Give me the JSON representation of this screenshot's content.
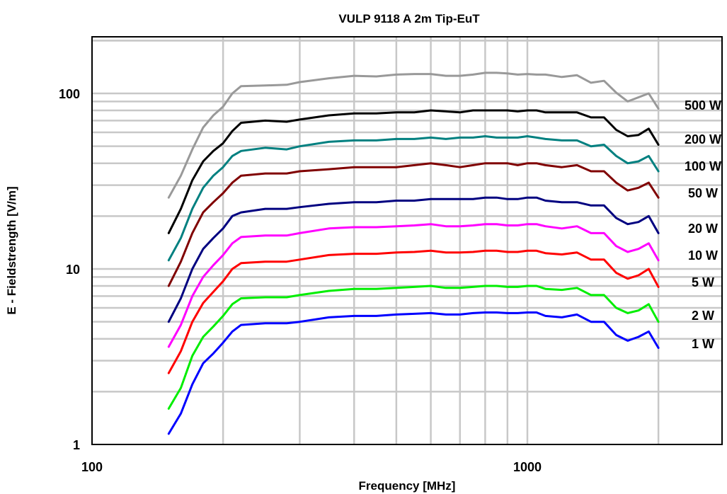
{
  "chart_data": {
    "type": "line",
    "title": "VULP 9118 A 2m Tip-EuT",
    "xlabel": "Frequency [MHz]",
    "ylabel": "E - Fieldstrength [V/m]",
    "x_scale": "log",
    "y_scale": "log",
    "xlim": [
      100,
      2000
    ],
    "ylim": [
      1,
      200
    ],
    "x_ticks": [
      {
        "value": 100,
        "label": "100"
      },
      {
        "value": 1000,
        "label": "1000"
      }
    ],
    "y_ticks": [
      {
        "value": 1,
        "label": "1"
      },
      {
        "value": 10,
        "label": "10"
      },
      {
        "value": 100,
        "label": "100"
      }
    ],
    "grid": true,
    "x": [
      150,
      160,
      170,
      180,
      190,
      200,
      210,
      220,
      250,
      280,
      300,
      350,
      400,
      450,
      500,
      550,
      600,
      650,
      700,
      750,
      800,
      850,
      900,
      950,
      1000,
      1050,
      1100,
      1200,
      1300,
      1400,
      1500,
      1600,
      1700,
      1800,
      1900,
      2000
    ],
    "series": [
      {
        "name": "500 W",
        "label": "500 W",
        "color": "#999999",
        "values": [
          25.5,
          34,
          48,
          64,
          75,
          84,
          100,
          110,
          111,
          112,
          116,
          122,
          126,
          125,
          128,
          129,
          129,
          126,
          126,
          128,
          131,
          131,
          130,
          128,
          129,
          128,
          128,
          124,
          127,
          115,
          118,
          101,
          90,
          95,
          100,
          82
        ]
      },
      {
        "name": "200 W",
        "label": "200 W",
        "color": "#000000",
        "values": [
          16,
          22,
          32,
          41,
          47,
          52,
          61,
          68,
          70,
          69,
          71,
          75,
          77,
          77,
          78,
          78,
          80,
          79,
          78,
          80,
          80,
          80,
          80,
          79,
          80,
          80,
          78,
          78,
          78,
          73,
          73,
          62,
          57,
          58,
          63,
          51
        ]
      },
      {
        "name": "100 W",
        "label": "100 W",
        "color": "#008080",
        "values": [
          11.2,
          15,
          22,
          29,
          34,
          38,
          44,
          47,
          49,
          48,
          50,
          53,
          54,
          54,
          55,
          55,
          56,
          55,
          56,
          56,
          57,
          56,
          56,
          56,
          57,
          56,
          55,
          54,
          54,
          50,
          51,
          44,
          40,
          41,
          44,
          36
        ]
      },
      {
        "name": "50 W",
        "label": "50 W",
        "color": "#800000",
        "values": [
          8,
          11,
          16,
          21,
          24,
          27,
          31,
          34,
          35,
          35,
          36,
          37,
          38,
          38,
          38,
          39,
          40,
          39,
          38,
          39,
          40,
          40,
          40,
          39,
          40,
          40,
          39,
          38,
          39,
          36,
          36,
          31,
          28,
          29,
          31,
          25.5
        ]
      },
      {
        "name": "20 W",
        "label": "20 W",
        "color": "#000080",
        "values": [
          5,
          6.8,
          10,
          13,
          15,
          17,
          20,
          21,
          22,
          22,
          22.5,
          23.5,
          24,
          24,
          24.5,
          24.5,
          25,
          25,
          25,
          25,
          25.5,
          25.5,
          25,
          25,
          25.5,
          25.5,
          24.5,
          24,
          24,
          23,
          23,
          19.5,
          18,
          18.5,
          20,
          16
        ]
      },
      {
        "name": "10 W",
        "label": "10 W",
        "color": "#ff00ff",
        "values": [
          3.6,
          4.8,
          7,
          9,
          10.5,
          12,
          14,
          15.2,
          15.5,
          15.5,
          16,
          17,
          17.3,
          17.3,
          17.5,
          17.7,
          18,
          17.5,
          17.5,
          17.7,
          18,
          18,
          17.7,
          17.7,
          18,
          18,
          17.5,
          17,
          17.5,
          16,
          16,
          13.5,
          12.5,
          13,
          14,
          11.2
        ]
      },
      {
        "name": "5 W",
        "label": "5 W",
        "color": "#ff0000",
        "values": [
          2.55,
          3.4,
          5,
          6.4,
          7.4,
          8.5,
          10,
          10.8,
          11,
          11,
          11.3,
          12,
          12.2,
          12.2,
          12.4,
          12.5,
          12.7,
          12.4,
          12.4,
          12.5,
          12.7,
          12.7,
          12.5,
          12.5,
          12.7,
          12.7,
          12.3,
          12.1,
          12.4,
          11.3,
          11.3,
          9.5,
          8.8,
          9.2,
          10,
          7.9
        ]
      },
      {
        "name": "2 W",
        "label": "2 W",
        "color": "#00ee00",
        "values": [
          1.6,
          2.1,
          3.2,
          4.1,
          4.7,
          5.4,
          6.3,
          6.8,
          6.9,
          6.9,
          7.1,
          7.5,
          7.7,
          7.7,
          7.8,
          7.9,
          8,
          7.8,
          7.8,
          7.9,
          8,
          8,
          7.9,
          7.9,
          8,
          8,
          7.7,
          7.6,
          7.8,
          7.1,
          7.1,
          6,
          5.6,
          5.8,
          6.3,
          5
        ]
      },
      {
        "name": "1 W",
        "label": "1 W",
        "color": "#0000ff",
        "values": [
          1.15,
          1.5,
          2.2,
          2.9,
          3.3,
          3.8,
          4.4,
          4.8,
          4.9,
          4.9,
          5,
          5.3,
          5.4,
          5.4,
          5.5,
          5.55,
          5.6,
          5.5,
          5.5,
          5.6,
          5.65,
          5.65,
          5.6,
          5.6,
          5.65,
          5.65,
          5.4,
          5.3,
          5.5,
          5,
          5,
          4.2,
          3.9,
          4.1,
          4.4,
          3.55
        ]
      }
    ]
  }
}
